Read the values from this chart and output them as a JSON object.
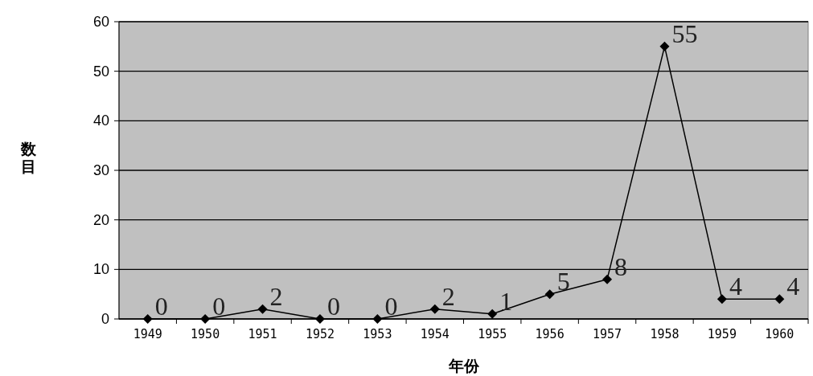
{
  "chart_data": {
    "type": "line",
    "xlabel": "年份",
    "ylabel": "数目",
    "categories": [
      "1949",
      "1950",
      "1951",
      "1952",
      "1953",
      "1954",
      "1955",
      "1956",
      "1957",
      "1958",
      "1959",
      "1960"
    ],
    "values": [
      0,
      0,
      2,
      0,
      0,
      2,
      1,
      5,
      8,
      55,
      4,
      4
    ],
    "color": "#000000",
    "ylim": [
      0,
      60
    ],
    "yticks": [
      0,
      10,
      20,
      30,
      40,
      50,
      60
    ],
    "grid": "y",
    "marker": "diamond",
    "data_labels": true
  }
}
